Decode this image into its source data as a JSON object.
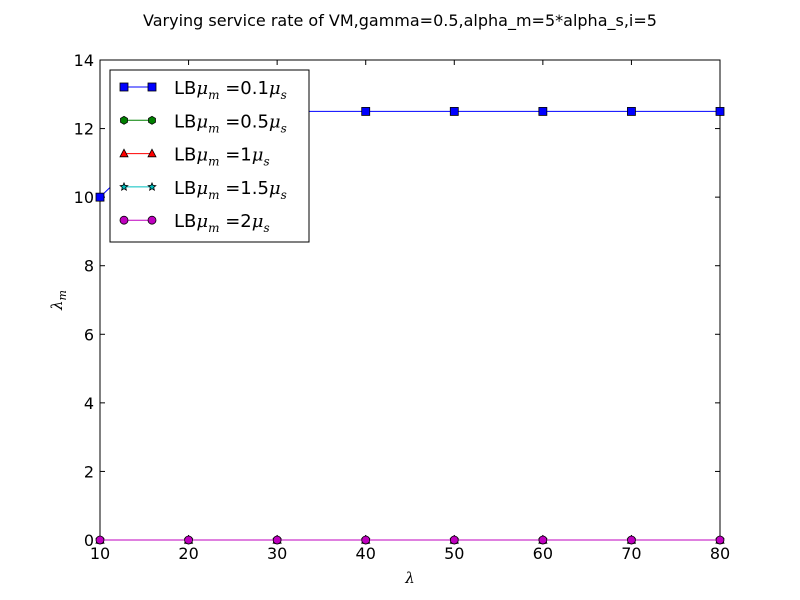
{
  "chart_data": {
    "type": "line",
    "title": "Varying service rate of VM,gamma=0.5,alpha_m=5*alpha_s,i=5",
    "xlabel": "λ",
    "ylabel": "λm",
    "xlim": [
      10,
      80
    ],
    "ylim": [
      0,
      14
    ],
    "xticks": [
      10,
      20,
      30,
      40,
      50,
      60,
      70,
      80
    ],
    "yticks": [
      0,
      2,
      4,
      6,
      8,
      10,
      12,
      14
    ],
    "grid": false,
    "legend_position": "top-left",
    "x": [
      10,
      20,
      30,
      40,
      50,
      60,
      70,
      80
    ],
    "series": [
      {
        "name": "LBμm =0.1μs",
        "label_parts": [
          "LB",
          "μ",
          "m",
          " =0.1",
          "μ",
          "s"
        ],
        "color": "#0000ff",
        "marker": "square",
        "values": [
          10,
          12.5,
          12.5,
          12.5,
          12.5,
          12.5,
          12.5,
          12.5
        ]
      },
      {
        "name": "LBμm =0.5μs",
        "label_parts": [
          "LB",
          "μ",
          "m",
          " =0.5",
          "μ",
          "s"
        ],
        "color": "#008000",
        "marker": "hexagon",
        "values": [
          0,
          0,
          0,
          0,
          0,
          0,
          0,
          0
        ]
      },
      {
        "name": "LBμm =1μs",
        "label_parts": [
          "LB",
          "μ",
          "m",
          " =1",
          "μ",
          "s"
        ],
        "color": "#ff0000",
        "marker": "triangle",
        "values": [
          0,
          0,
          0,
          0,
          0,
          0,
          0,
          0
        ]
      },
      {
        "name": "LBμm =1.5μs",
        "label_parts": [
          "LB",
          "μ",
          "m",
          " =1.5",
          "μ",
          "s"
        ],
        "color": "#00bfbf",
        "marker": "star",
        "values": [
          0,
          0,
          0,
          0,
          0,
          0,
          0,
          0
        ]
      },
      {
        "name": "LBμm =2μs",
        "label_parts": [
          "LB",
          "μ",
          "m",
          " =2",
          "μ",
          "s"
        ],
        "color": "#bf00bf",
        "marker": "circle",
        "values": [
          0,
          0,
          0,
          0,
          0,
          0,
          0,
          0
        ]
      }
    ]
  }
}
